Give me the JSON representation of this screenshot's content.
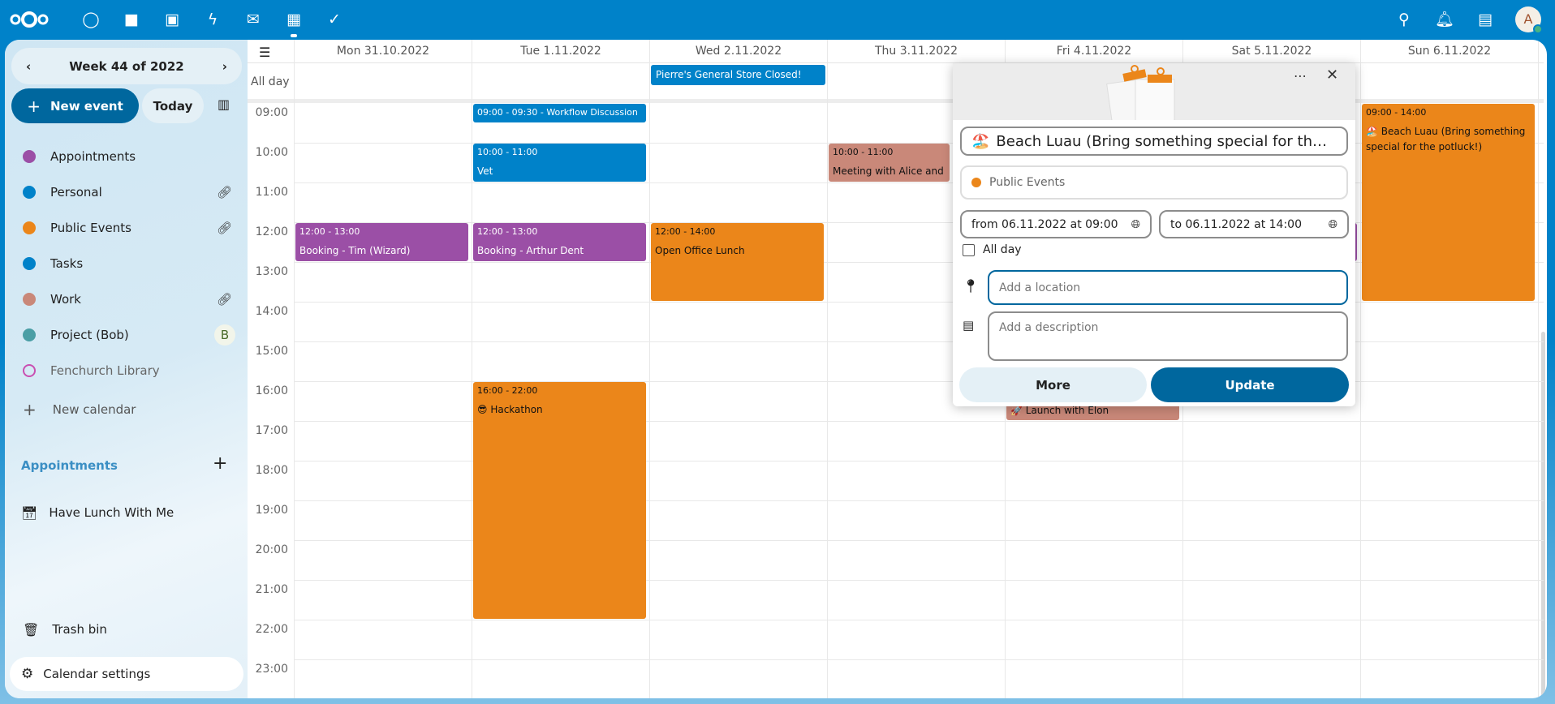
{
  "topbar": {
    "apps": [
      "dashboard-icon",
      "files-icon",
      "photos-icon",
      "activity-icon",
      "mail-icon",
      "calendar-icon",
      "tasks-icon"
    ],
    "avatar_letter": "A",
    "accent": "#0082c9"
  },
  "sidebar": {
    "week_label": "Week 44 of 2022",
    "new_event": "New event",
    "today": "Today",
    "calendars": [
      {
        "name": "Appointments",
        "color": "#9b4fa6",
        "link": false
      },
      {
        "name": "Personal",
        "color": "#0082c9",
        "link": true
      },
      {
        "name": "Public Events",
        "color": "#eb861a",
        "link": true
      },
      {
        "name": "Tasks",
        "color": "#0082c9",
        "link": false
      },
      {
        "name": "Work",
        "color": "#c98879",
        "link": true
      },
      {
        "name": "Project (Bob)",
        "color": "#4a9ea5",
        "link": false,
        "shared_by": "B"
      },
      {
        "name": "Fenchurch Library",
        "color": "#c94fb1",
        "link": false,
        "hollow": true
      }
    ],
    "new_calendar": "New calendar",
    "appointments_header": "Appointments",
    "appointment_items": [
      "Have Lunch With Me"
    ],
    "trash": "Trash bin",
    "settings": "Calendar settings"
  },
  "calendar": {
    "all_day_label": "All day",
    "days": [
      "Mon 31.10.2022",
      "Tue 1.11.2022",
      "Wed 2.11.2022",
      "Thu 3.11.2022",
      "Fri 4.11.2022",
      "Sat 5.11.2022",
      "Sun 6.11.2022"
    ],
    "hours": [
      "09:00",
      "10:00",
      "11:00",
      "12:00",
      "13:00",
      "14:00",
      "15:00",
      "16:00",
      "17:00",
      "18:00",
      "19:00",
      "20:00",
      "21:00",
      "22:00",
      "23:00"
    ],
    "all_day_events": [
      {
        "day": 2,
        "title": "Pierre's General Store Closed!",
        "color": "#0082c9"
      }
    ],
    "events": [
      {
        "day": 1,
        "start": 9,
        "end": 9.5,
        "time": "09:00 - 09:30 - Workflow Discussion",
        "title": "",
        "color": "#0082c9",
        "inline": true
      },
      {
        "day": 1,
        "start": 10,
        "end": 11,
        "time": "10:00 - 11:00",
        "title": "Vet",
        "color": "#0082c9"
      },
      {
        "day": 0,
        "start": 12,
        "end": 13,
        "time": "12:00 - 13:00",
        "title": "Booking - Tim (Wizard)",
        "color": "#9b4fa6"
      },
      {
        "day": 1,
        "start": 12,
        "end": 13,
        "time": "12:00 - 13:00",
        "title": "Booking - Arthur Dent",
        "color": "#9b4fa6"
      },
      {
        "day": 2,
        "start": 12,
        "end": 14,
        "time": "12:00 - 14:00",
        "title": "Open Office Lunch",
        "color": "#eb861a",
        "dark": true
      },
      {
        "day": 3,
        "start": 10,
        "end": 11,
        "time": "10:00 - 11:00",
        "title": "Meeting with Alice and B",
        "color": "#c98879",
        "dark": true
      },
      {
        "day": 1,
        "start": 16,
        "end": 22,
        "time": "16:00 - 22:00",
        "title": "😎 Hackathon",
        "color": "#eb861a",
        "dark": true
      },
      {
        "day": 4,
        "start": 16,
        "end": 17,
        "time": "",
        "title": "🚀 Launch with Elon",
        "color": "#c98879",
        "dark": true,
        "bottom": true
      },
      {
        "day": 5,
        "start": 12,
        "end": 13,
        "time": "",
        "title": "",
        "color": "#9b4fa6"
      },
      {
        "day": 6,
        "start": 9,
        "end": 14,
        "time": "09:00 - 14:00",
        "title": "🏖️ Beach Luau (Bring something special for the potluck!)",
        "color": "#eb861a",
        "dark": true
      }
    ]
  },
  "popup": {
    "title": "Beach Luau (Bring something special for th…",
    "title_emoji": "🏖️",
    "calendar": "Public Events",
    "calendar_color": "#eb861a",
    "from": "from 06.11.2022 at 09:00",
    "to": "to 06.11.2022 at 14:00",
    "all_day": "All day",
    "all_day_checked": false,
    "location_placeholder": "Add a location",
    "description_placeholder": "Add a description",
    "more": "More",
    "update": "Update"
  }
}
